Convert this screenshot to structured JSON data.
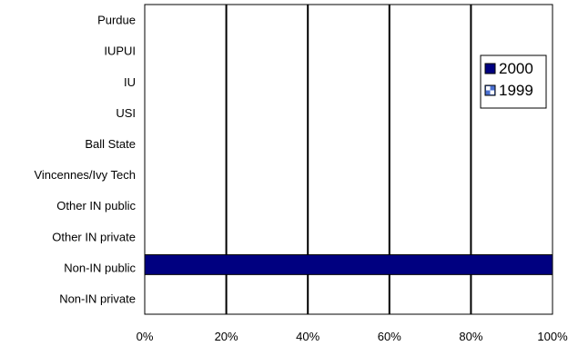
{
  "chart_data": {
    "type": "bar",
    "orientation": "horizontal",
    "categories": [
      "Purdue",
      "IUPUI",
      "IU",
      "USI",
      "Ball State",
      "Vincennes/Ivy Tech",
      "Other IN public",
      "Other IN private",
      "Non-IN public",
      "Non-IN private"
    ],
    "series": [
      {
        "name": "2000",
        "values": [
          0,
          0,
          0,
          0,
          0,
          0,
          0,
          0,
          100,
          0
        ],
        "color": "#000080"
      },
      {
        "name": "1999",
        "values": [
          0,
          0,
          0,
          0,
          0,
          0,
          0,
          0,
          0,
          0
        ],
        "color": "#4a6fd0"
      }
    ],
    "xlim": [
      0,
      100
    ],
    "xticks": [
      "0%",
      "20%",
      "40%",
      "60%",
      "80%",
      "100%"
    ],
    "grid": "vertical",
    "legend": "right"
  }
}
